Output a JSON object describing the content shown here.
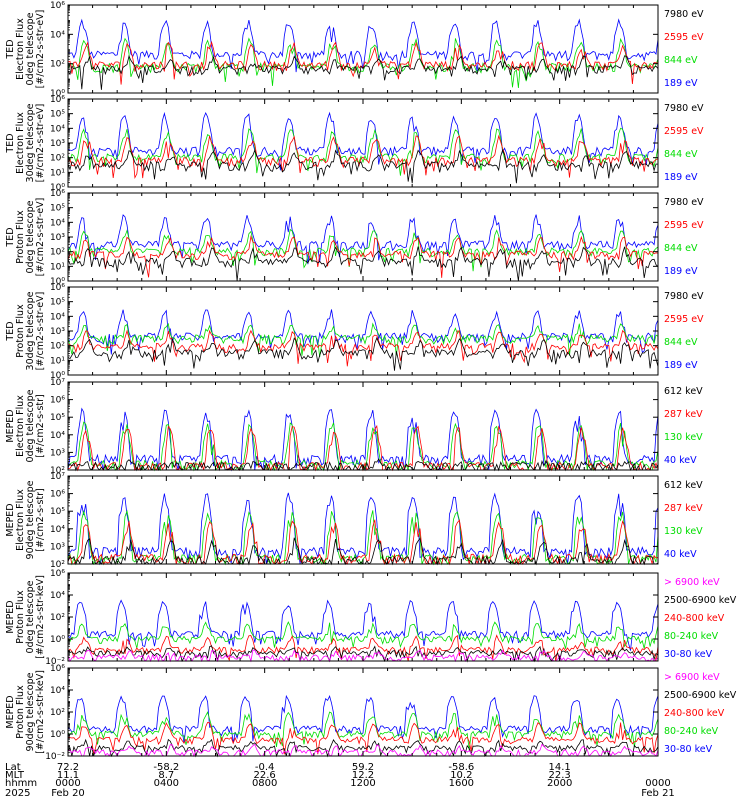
{
  "chart_data": [
    {
      "type": "line",
      "ylabel": [
        "TED",
        "Electron Flux",
        "0deg telescope",
        "[#/cm2-s-str-eV]"
      ],
      "ylim": [
        1,
        1000000
      ],
      "yscale": "log",
      "ytick_labels": [
        "10⁰",
        "10²",
        "10⁴",
        "10⁶"
      ],
      "ytick_values": [
        1,
        100,
        10000,
        1000000
      ],
      "series": [
        {
          "name": "7980 eV",
          "color": "#000000",
          "baseline": 40,
          "spike": 300
        },
        {
          "name": "2595 eV",
          "color": "#ff0000",
          "baseline": 80,
          "spike": 3000
        },
        {
          "name": "844 eV",
          "color": "#00dd00",
          "baseline": 60,
          "spike": 5000
        },
        {
          "name": "189 eV",
          "color": "#0000ff",
          "baseline": 400,
          "spike": 100000
        }
      ],
      "grid": false
    },
    {
      "type": "line",
      "ylabel": [
        "TED",
        "Electron Flux",
        "30deg telescope",
        "[#/cm2-s-str-eV]"
      ],
      "ylim": [
        1,
        1000000
      ],
      "yscale": "log",
      "ytick_labels": [
        "10⁰",
        "10¹",
        "10²",
        "10³",
        "10⁴",
        "10⁵",
        "10⁶"
      ],
      "ytick_values": [
        1,
        10,
        100,
        1000,
        10000,
        100000,
        1000000
      ],
      "series": [
        {
          "name": "7980 eV",
          "color": "#000000",
          "baseline": 30,
          "spike": 300
        },
        {
          "name": "2595 eV",
          "color": "#ff0000",
          "baseline": 60,
          "spike": 3000
        },
        {
          "name": "844 eV",
          "color": "#00dd00",
          "baseline": 100,
          "spike": 10000
        },
        {
          "name": "189 eV",
          "color": "#0000ff",
          "baseline": 300,
          "spike": 100000
        }
      ],
      "grid": false
    },
    {
      "type": "line",
      "ylabel": [
        "TED",
        "Proton Flux",
        "0deg telescope",
        "[#/cm2-s-str-eV]"
      ],
      "ylim": [
        1,
        1000000
      ],
      "yscale": "log",
      "ytick_labels": [
        "10⁰",
        "10¹",
        "10²",
        "10³",
        "10⁴",
        "10⁵",
        "10⁶"
      ],
      "ytick_values": [
        1,
        10,
        100,
        1000,
        10000,
        100000,
        1000000
      ],
      "series": [
        {
          "name": "7980 eV",
          "color": "#000000",
          "baseline": 20,
          "spike": 200
        },
        {
          "name": "2595 eV",
          "color": "#ff0000",
          "baseline": 60,
          "spike": 1000
        },
        {
          "name": "844 eV",
          "color": "#00dd00",
          "baseline": 100,
          "spike": 3000
        },
        {
          "name": "189 eV",
          "color": "#0000ff",
          "baseline": 300,
          "spike": 30000
        }
      ],
      "grid": false
    },
    {
      "type": "line",
      "ylabel": [
        "TED",
        "Proton Flux",
        "30deg telescope",
        "[#/cm2-s-str-eV]"
      ],
      "ylim": [
        1,
        1000000
      ],
      "yscale": "log",
      "ytick_labels": [
        "10⁰",
        "10¹",
        "10²",
        "10³",
        "10⁴",
        "10⁵",
        "10⁶"
      ],
      "ytick_values": [
        1,
        10,
        100,
        1000,
        10000,
        100000,
        1000000
      ],
      "series": [
        {
          "name": "7980 eV",
          "color": "#000000",
          "baseline": 30,
          "spike": 300
        },
        {
          "name": "2595 eV",
          "color": "#ff0000",
          "baseline": 80,
          "spike": 1000
        },
        {
          "name": "844 eV",
          "color": "#00dd00",
          "baseline": 300,
          "spike": 3000
        },
        {
          "name": "189 eV",
          "color": "#0000ff",
          "baseline": 400,
          "spike": 30000
        }
      ],
      "grid": false
    },
    {
      "type": "line",
      "ylabel": [
        "MEPED",
        "Electron Flux",
        "0deg telescope",
        "[#/cm2-s-str]"
      ],
      "ylim": [
        100,
        10000000
      ],
      "yscale": "log",
      "ytick_labels": [
        "10²",
        "10³",
        "10⁴",
        "10⁵",
        "10⁶",
        "10⁷"
      ],
      "ytick_values": [
        100,
        1000,
        10000,
        100000,
        1000000,
        10000000
      ],
      "series": [
        {
          "name": "612 keV",
          "color": "#000000",
          "baseline": 150,
          "spike": 300
        },
        {
          "name": "287 keV",
          "color": "#ff0000",
          "baseline": 150,
          "spike": 30000
        },
        {
          "name": "130 keV",
          "color": "#00dd00",
          "baseline": 200,
          "spike": 50000
        },
        {
          "name": "40 keV",
          "color": "#0000ff",
          "baseline": 400,
          "spike": 300000
        }
      ],
      "grid": false
    },
    {
      "type": "line",
      "ylabel": [
        "MEPED",
        "Electron Flux",
        "90deg telescope",
        "[#/cm2-s-str]"
      ],
      "ylim": [
        100,
        10000000
      ],
      "yscale": "log",
      "ytick_labels": [
        "10²",
        "10³",
        "10⁴",
        "10⁵",
        "10⁶",
        "10⁷"
      ],
      "ytick_values": [
        100,
        1000,
        10000,
        100000,
        1000000,
        10000000
      ],
      "series": [
        {
          "name": "612 keV",
          "color": "#000000",
          "baseline": 150,
          "spike": 3000
        },
        {
          "name": "287 keV",
          "color": "#ff0000",
          "baseline": 200,
          "spike": 30000
        },
        {
          "name": "130 keV",
          "color": "#00dd00",
          "baseline": 200,
          "spike": 100000
        },
        {
          "name": "40 keV",
          "color": "#0000ff",
          "baseline": 500,
          "spike": 1000000
        }
      ],
      "grid": false
    },
    {
      "type": "line",
      "ylabel": [
        "MEPED",
        "Proton Flux",
        "0deg telescope",
        "[#/cm2-s-str-keV]"
      ],
      "ylim": [
        0.01,
        1000000
      ],
      "yscale": "log",
      "ytick_labels": [
        "10⁻²",
        "10⁰",
        "10²",
        "10⁴",
        "10⁶"
      ],
      "ytick_values": [
        0.01,
        1,
        100,
        10000,
        1000000
      ],
      "series": [
        {
          "name": "> 6900 keV",
          "color": "#ff00ff",
          "baseline": 0.02,
          "spike": 0.1
        },
        {
          "name": "2500-6900 keV",
          "color": "#000000",
          "baseline": 0.05,
          "spike": 0.2
        },
        {
          "name": "240-800 keV",
          "color": "#ff0000",
          "baseline": 0.1,
          "spike": 2
        },
        {
          "name": "80-240 keV",
          "color": "#00dd00",
          "baseline": 1,
          "spike": 30
        },
        {
          "name": "30-80 keV",
          "color": "#0000ff",
          "baseline": 3,
          "spike": 3000
        }
      ],
      "grid": false
    },
    {
      "type": "line",
      "ylabel": [
        "MEPED",
        "Proton Flux",
        "90deg telescope",
        "[#/cm2-s-str-keV]"
      ],
      "ylim": [
        0.01,
        1000000
      ],
      "yscale": "log",
      "ytick_labels": [
        "10⁻²",
        "10⁰",
        "10²",
        "10⁴",
        "10⁶"
      ],
      "ytick_values": [
        0.01,
        1,
        100,
        10000,
        1000000
      ],
      "series": [
        {
          "name": "> 6900 keV",
          "color": "#ff00ff",
          "baseline": 0.02,
          "spike": 0.1
        },
        {
          "name": "2500-6900 keV",
          "color": "#000000",
          "baseline": 0.05,
          "spike": 0.3
        },
        {
          "name": "240-800 keV",
          "color": "#ff0000",
          "baseline": 0.3,
          "spike": 10
        },
        {
          "name": "80-240 keV",
          "color": "#00dd00",
          "baseline": 1,
          "spike": 100
        },
        {
          "name": "30-80 keV",
          "color": "#0000ff",
          "baseline": 3,
          "spike": 3000
        }
      ],
      "grid": false
    }
  ],
  "time_axis": {
    "row_labels": [
      "Lat",
      "MLT",
      "hhmm",
      "2025"
    ],
    "columns": [
      {
        "lat": "72.2",
        "mlt": "11.1",
        "hhmm": "0000",
        "date": "Feb 20"
      },
      {
        "lat": "-58.2",
        "mlt": "8.7",
        "hhmm": "0400",
        "date": ""
      },
      {
        "lat": "-0.4",
        "mlt": "22.6",
        "hhmm": "0800",
        "date": ""
      },
      {
        "lat": "59.2",
        "mlt": "12.2",
        "hhmm": "1200",
        "date": ""
      },
      {
        "lat": "-58.6",
        "mlt": "10.2",
        "hhmm": "1600",
        "date": ""
      },
      {
        "lat": "14.1",
        "mlt": "22.3",
        "hhmm": "2000",
        "date": ""
      },
      {
        "lat": "",
        "mlt": "",
        "hhmm": "0000",
        "date": "Feb 21"
      }
    ],
    "hours": [
      0,
      4,
      8,
      12,
      16,
      20,
      24
    ]
  }
}
